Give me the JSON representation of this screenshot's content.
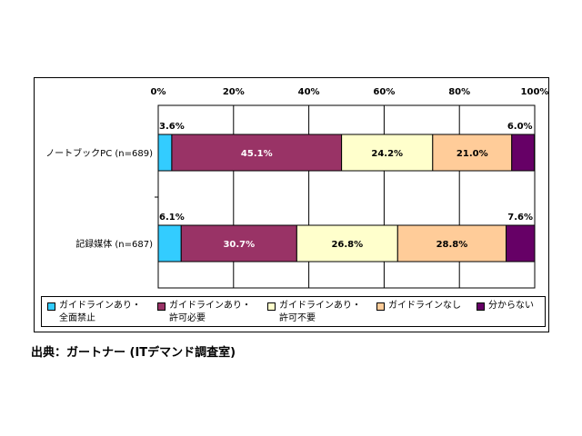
{
  "chart_data": {
    "type": "bar",
    "orientation": "horizontal",
    "stacked": true,
    "categories": [
      "ノートブックPC (n=689)",
      "記録媒体 (n=687)"
    ],
    "x_ticks": [
      "0%",
      "20%",
      "40%",
      "60%",
      "80%",
      "100%"
    ],
    "xlim": [
      0,
      100
    ],
    "grid": true,
    "legend_position": "bottom",
    "series": [
      {
        "name": "ガイドラインあり・全面禁止",
        "values": [
          3.6,
          6.1
        ],
        "labels": [
          "3.6%",
          "6.1%"
        ],
        "color": "#33ccff"
      },
      {
        "name": "ガイドラインあり・許可必要",
        "values": [
          45.1,
          30.7
        ],
        "labels": [
          "45.1%",
          "30.7%"
        ],
        "color": "#993366"
      },
      {
        "name": "ガイドラインあり・許可不要",
        "values": [
          24.2,
          26.8
        ],
        "labels": [
          "24.2%",
          "26.8%"
        ],
        "color": "#ffffcc"
      },
      {
        "name": "ガイドラインなし",
        "values": [
          21.0,
          28.8
        ],
        "labels": [
          "21.0%",
          "28.8%"
        ],
        "color": "#ffcc99"
      },
      {
        "name": "分からない",
        "values": [
          6.0,
          7.6
        ],
        "labels": [
          "6.0%",
          "7.6%"
        ],
        "color": "#660066"
      }
    ]
  },
  "legend": [
    {
      "line1": "ガイドラインあり・",
      "line2": "全面禁止"
    },
    {
      "line1": "ガイドラインあり・",
      "line2": "許可必要"
    },
    {
      "line1": "ガイドラインあり・",
      "line2": "許可不要"
    },
    {
      "line1": "ガイドラインなし",
      "line2": ""
    },
    {
      "line1": "分からない",
      "line2": ""
    }
  ],
  "source": "出典：ガートナー (ITデマンド調査室)"
}
